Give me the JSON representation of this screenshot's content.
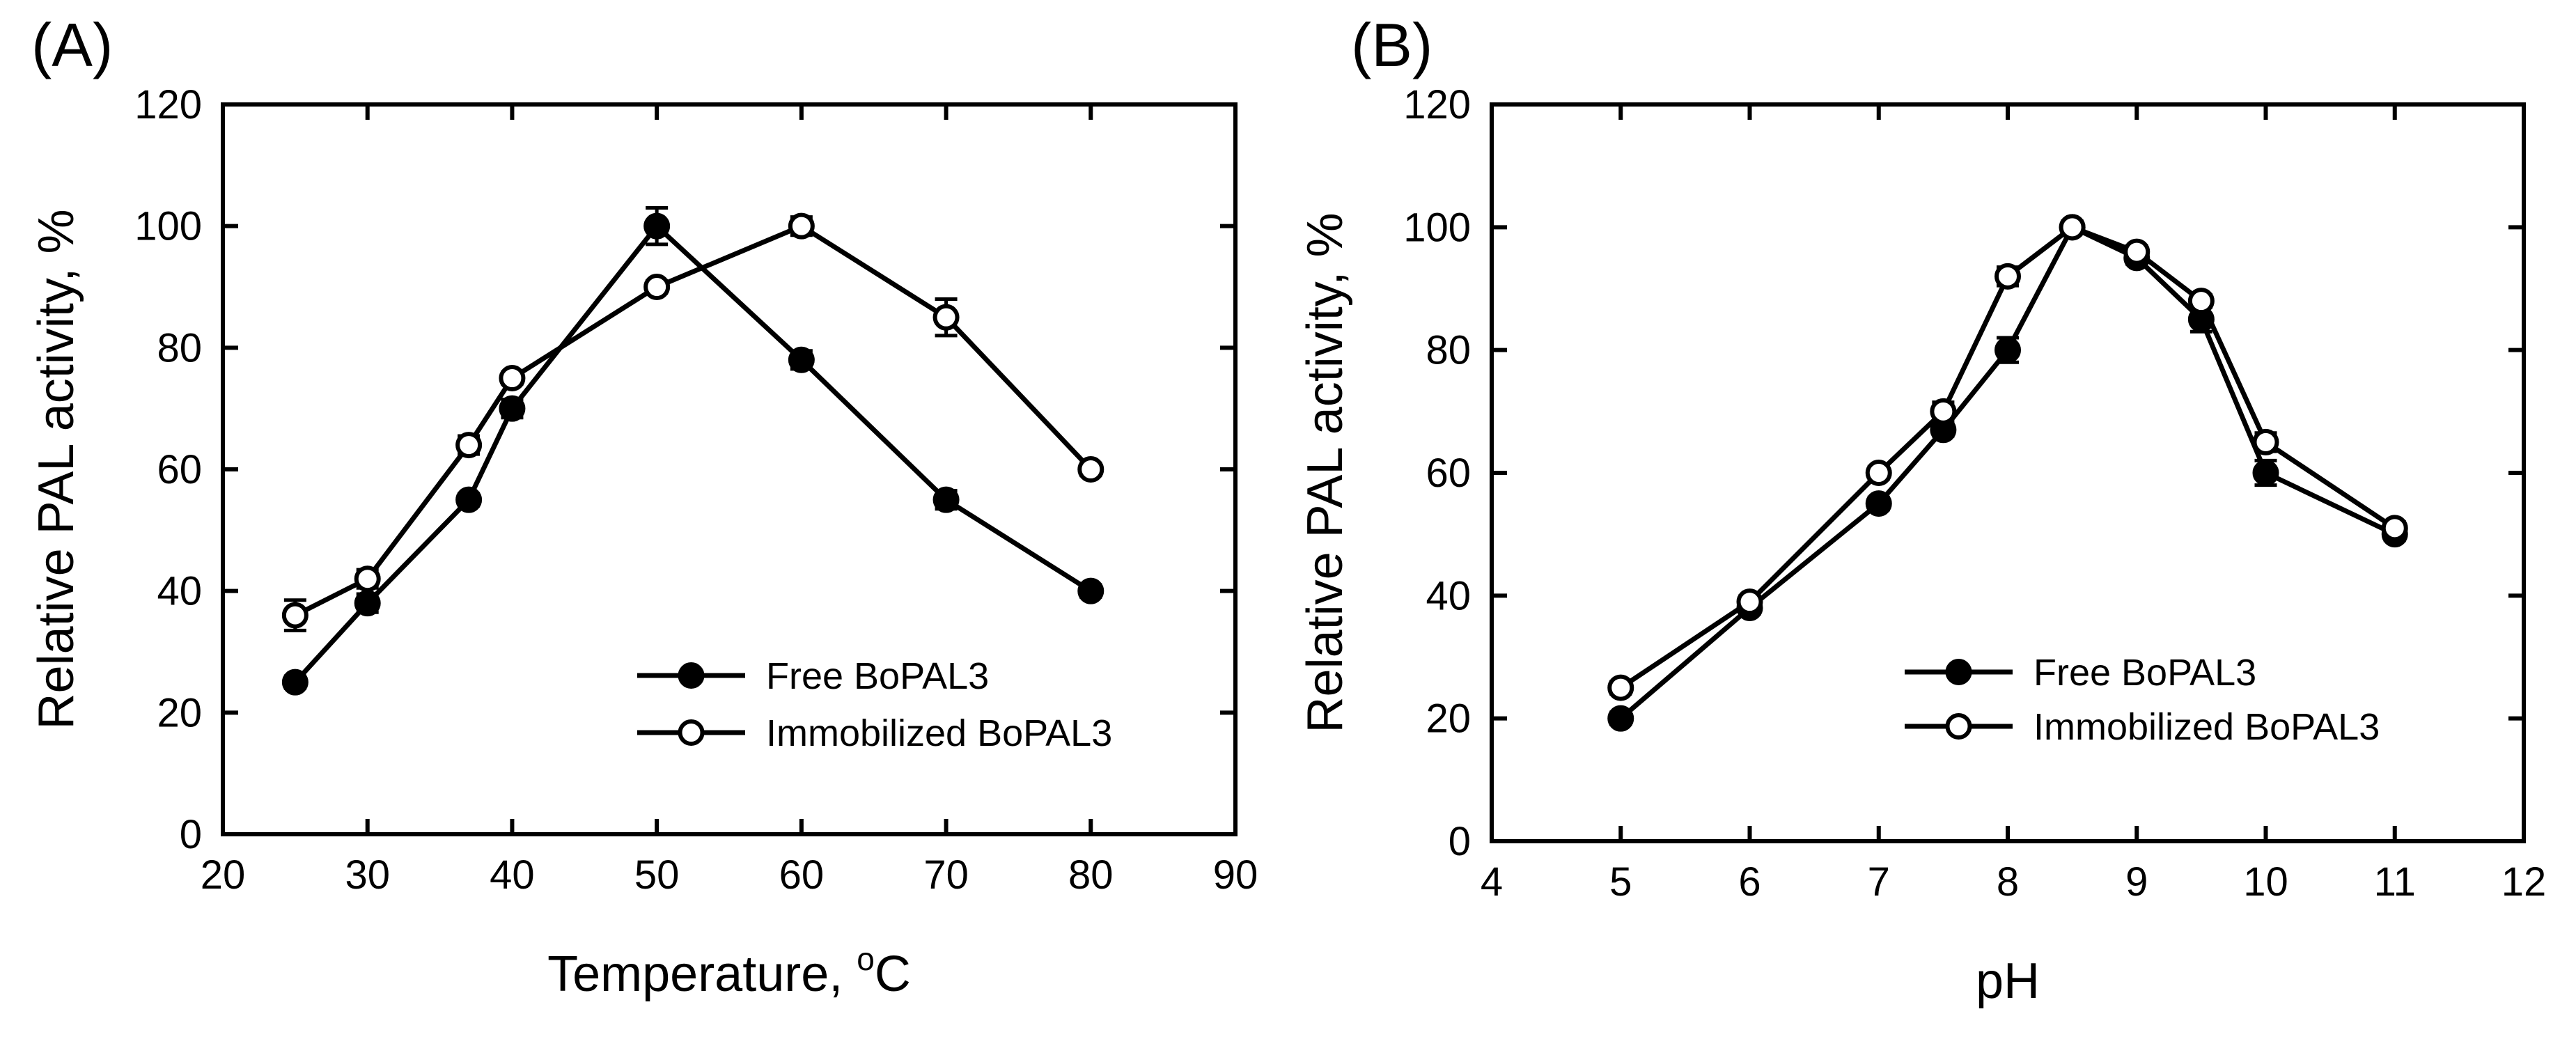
{
  "chart_data": [
    {
      "type": "line",
      "panel_label": "(A)",
      "xlabel": "Temperature, ",
      "xlabel_sup": "o",
      "xlabel_unit": "C",
      "ylabel": "Relative PAL activity, %",
      "xlim": [
        20,
        90
      ],
      "ylim": [
        0,
        120
      ],
      "xticks": [
        "20",
        "30",
        "40",
        "50",
        "60",
        "70",
        "80",
        "90"
      ],
      "yticks": [
        "0",
        "20",
        "40",
        "60",
        "80",
        "100",
        "120"
      ],
      "legend_position": "lower-right",
      "series": [
        {
          "name": "Free BoPAL3",
          "marker": "filled-circle",
          "x": [
            25,
            30,
            37,
            40,
            50,
            60,
            70,
            80
          ],
          "y": [
            25,
            38,
            55,
            70,
            100,
            78,
            55,
            40
          ],
          "err": [
            1,
            1.5,
            1,
            1.5,
            3,
            1.5,
            1.5,
            1
          ]
        },
        {
          "name": "Immobilized BoPAL3",
          "marker": "open-circle",
          "x": [
            25,
            30,
            37,
            40,
            50,
            60,
            70,
            80
          ],
          "y": [
            36,
            42,
            64,
            75,
            90,
            100,
            85,
            60
          ],
          "err": [
            2.5,
            1.5,
            1.5,
            1,
            1,
            1.5,
            3,
            1
          ]
        }
      ]
    },
    {
      "type": "line",
      "panel_label": "(B)",
      "xlabel": "pH",
      "ylabel": "Relative PAL activity, %",
      "xlim": [
        4,
        12
      ],
      "ylim": [
        0,
        120
      ],
      "xticks": [
        "4",
        "5",
        "6",
        "7",
        "8",
        "9",
        "10",
        "11",
        "12"
      ],
      "yticks": [
        "0",
        "20",
        "40",
        "60",
        "80",
        "100",
        "120"
      ],
      "legend_position": "lower-right",
      "series": [
        {
          "name": "Free BoPAL3",
          "marker": "filled-circle",
          "x": [
            5,
            6,
            7,
            7.5,
            8,
            8.5,
            9,
            9.5,
            10,
            11
          ],
          "y": [
            20,
            38,
            55,
            67,
            80,
            100,
            95,
            85,
            60,
            50
          ],
          "err": [
            1,
            1,
            1,
            1,
            2,
            1,
            1,
            2,
            2,
            1
          ]
        },
        {
          "name": "Immobilized BoPAL3",
          "marker": "open-circle",
          "x": [
            5,
            6,
            7,
            7.5,
            8,
            8.5,
            9,
            9.5,
            10,
            11
          ],
          "y": [
            25,
            39,
            60,
            70,
            92,
            100,
            96,
            88,
            65,
            51
          ],
          "err": [
            1,
            1,
            1,
            1.5,
            1.5,
            0.5,
            1,
            1,
            1.5,
            1
          ]
        }
      ]
    }
  ]
}
